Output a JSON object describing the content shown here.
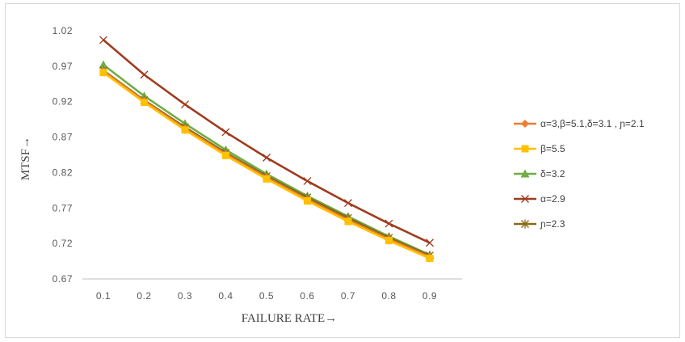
{
  "chart_data": {
    "type": "line",
    "title": "",
    "xlabel": "FAILURE RATE→",
    "ylabel": "MTSF→",
    "categories": [
      "0.1",
      "0.2",
      "0.3",
      "0.4",
      "0.5",
      "0.6",
      "0.7",
      "0.8",
      "0.9"
    ],
    "y_ticks": [
      "0.67",
      "0.72",
      "0.77",
      "0.82",
      "0.87",
      "0.92",
      "0.97",
      "1.02"
    ],
    "ylim": [
      0.67,
      1.02
    ],
    "grid": false,
    "legend_position": "right",
    "series": [
      {
        "name": "α=3,β=5.1,δ=3.1 , ɲ=2.1",
        "color": "#ed7d31",
        "marker": "diamond",
        "values": [
          0.963,
          0.921,
          0.882,
          0.846,
          0.813,
          0.782,
          0.753,
          0.726,
          0.701
        ]
      },
      {
        "name": "β=5.5",
        "color": "#ffc000",
        "marker": "square",
        "values": [
          0.961,
          0.919,
          0.88,
          0.844,
          0.811,
          0.78,
          0.751,
          0.724,
          0.699
        ]
      },
      {
        "name": "δ=3.2",
        "color": "#70ad47",
        "marker": "triangle",
        "values": [
          0.972,
          0.928,
          0.889,
          0.852,
          0.818,
          0.787,
          0.758,
          0.73,
          0.704
        ]
      },
      {
        "name": "α=2.9",
        "color": "#9e3c1f",
        "marker": "x",
        "values": [
          1.007,
          0.958,
          0.916,
          0.877,
          0.841,
          0.808,
          0.777,
          0.748,
          0.721
        ]
      },
      {
        "name": "ɲ=2.3",
        "color": "#8a6a16",
        "marker": "star",
        "values": [
          0.964,
          0.922,
          0.884,
          0.848,
          0.815,
          0.785,
          0.756,
          0.728,
          0.703
        ]
      }
    ]
  }
}
